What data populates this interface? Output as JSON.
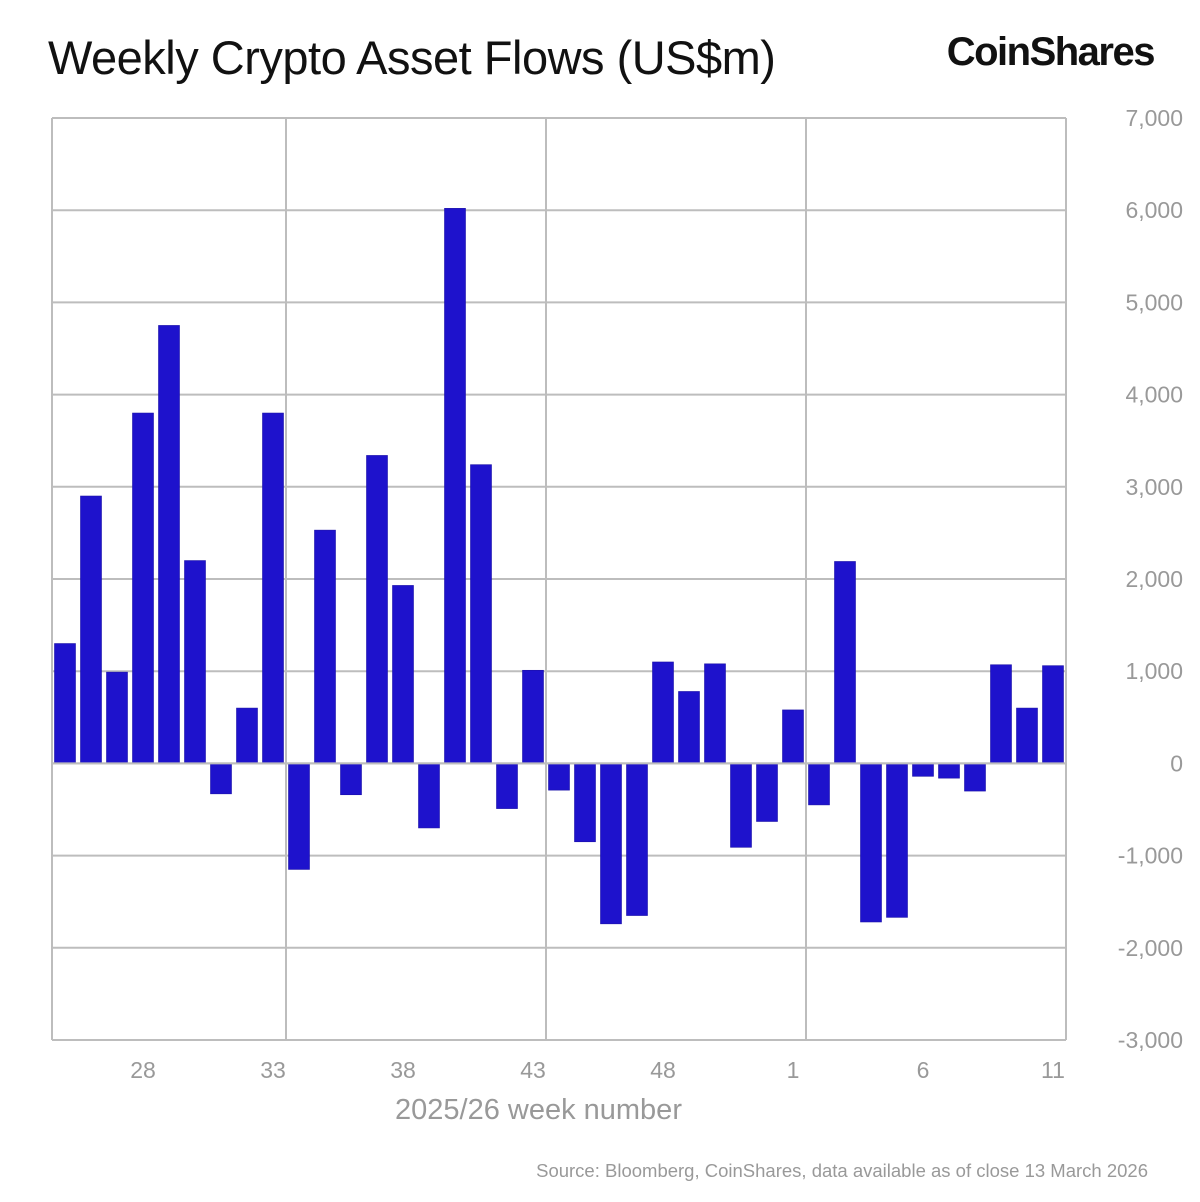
{
  "title": "Weekly Crypto Asset Flows (US$m)",
  "logo": "CoinShares",
  "source": "Source: Bloomberg, CoinShares, data available as of close 13 March 2026",
  "chart_data": {
    "type": "bar",
    "title": "Weekly Crypto Asset Flows (US$m)",
    "xlabel": "2025/26 week number",
    "ylabel": "",
    "ylim": [
      -3000,
      7000
    ],
    "y_axis_position": "right",
    "grid": true,
    "bar_color": "#1e12cc",
    "categories": [
      "25",
      "26",
      "27",
      "28",
      "29",
      "30",
      "31",
      "32",
      "33",
      "34",
      "35",
      "36",
      "37",
      "38",
      "39",
      "40",
      "41",
      "42",
      "43",
      "44",
      "45",
      "46",
      "47",
      "48",
      "49",
      "50",
      "51",
      "52",
      "1",
      "2",
      "3",
      "4",
      "5",
      "6",
      "7",
      "8",
      "9",
      "10",
      "11"
    ],
    "values": [
      1300,
      2900,
      990,
      3800,
      4750,
      2200,
      -330,
      600,
      3800,
      -1150,
      2530,
      -340,
      3340,
      1930,
      -700,
      6020,
      3240,
      -490,
      1010,
      -290,
      -850,
      -1740,
      -1650,
      1100,
      780,
      1080,
      -910,
      -630,
      580,
      -450,
      2190,
      -1720,
      -1670,
      -140,
      -160,
      -300,
      1070,
      600,
      1060
    ],
    "x_tick_labels": [
      "28",
      "33",
      "38",
      "43",
      "48",
      "1",
      "6",
      "11"
    ],
    "y_tick_labels": [
      "7,000",
      "6,000",
      "5,000",
      "4,000",
      "3,000",
      "2,000",
      "1,000",
      "0",
      "-1,000",
      "-2,000",
      "-3,000"
    ]
  }
}
